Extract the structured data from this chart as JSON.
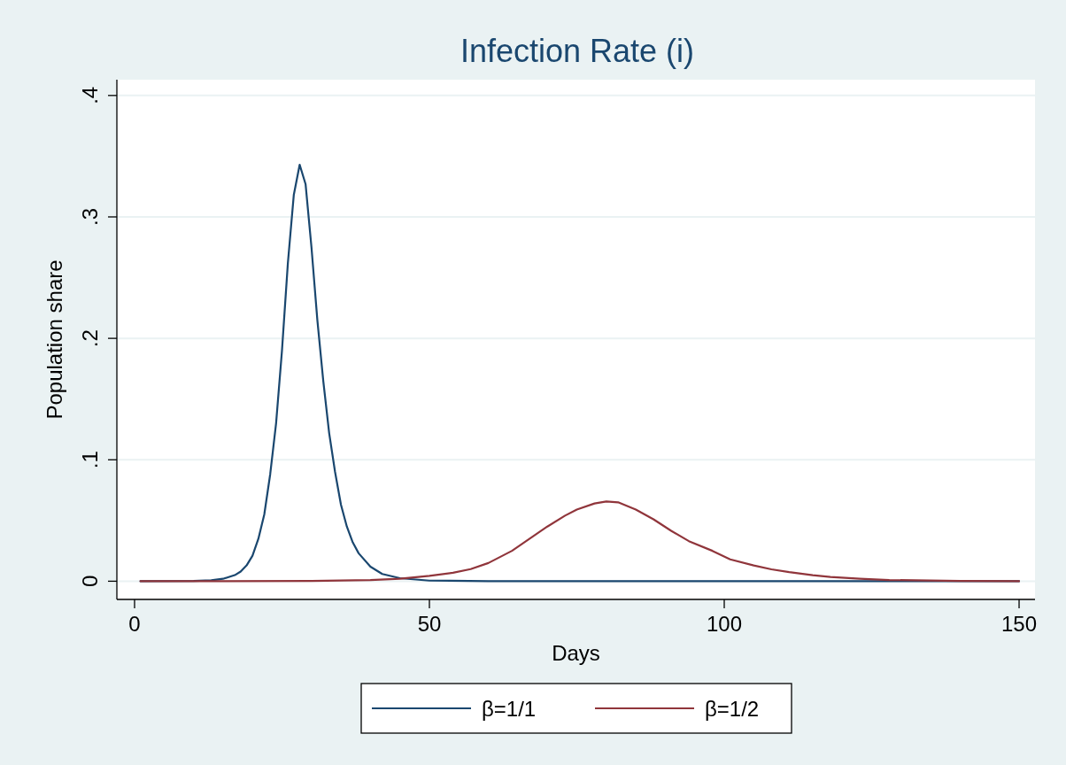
{
  "chart_data": {
    "type": "line",
    "title": "Infection Rate (i)",
    "xlabel": "Days",
    "ylabel": "Population share",
    "xlim": [
      -3,
      152.7
    ],
    "xticks": [
      0,
      50,
      100,
      150
    ],
    "ylim": [
      -0.015,
      0.413
    ],
    "yticks": [
      0,
      {
        "value": 0.1,
        "label": ".1"
      },
      {
        "value": 0.2,
        "label": ".2"
      },
      {
        "value": 0.3,
        "label": ".3"
      },
      {
        "value": 0.4,
        "label": ".4"
      }
    ],
    "grid": "y",
    "legend": "bottom",
    "marker": "none",
    "line_style": "solid",
    "series": [
      {
        "name": "β=1/1",
        "color": "#1a476f",
        "x": [
          1,
          10,
          13,
          15,
          17,
          18,
          19,
          20,
          21,
          22,
          23,
          24,
          25,
          26,
          27,
          28,
          29,
          30,
          31,
          32,
          33,
          34,
          35,
          36,
          37,
          38,
          40,
          42,
          45,
          50,
          60,
          150
        ],
        "values": [
          0,
          0.0002,
          0.0008,
          0.002,
          0.005,
          0.008,
          0.013,
          0.021,
          0.035,
          0.055,
          0.088,
          0.13,
          0.19,
          0.262,
          0.318,
          0.343,
          0.327,
          0.275,
          0.215,
          0.165,
          0.122,
          0.09,
          0.063,
          0.045,
          0.032,
          0.023,
          0.012,
          0.006,
          0.0025,
          0.0005,
          0.0001,
          0
        ]
      },
      {
        "name": "β=1/2",
        "color": "#90353b",
        "x": [
          1,
          30,
          40,
          45,
          50,
          54,
          57,
          60,
          64,
          67,
          70,
          73,
          75,
          78,
          80,
          82,
          85,
          88,
          91,
          94,
          98,
          101,
          105,
          108,
          111,
          115,
          118,
          123,
          128,
          140,
          150
        ],
        "values": [
          0,
          0.0002,
          0.001,
          0.002,
          0.0044,
          0.007,
          0.01,
          0.015,
          0.025,
          0.035,
          0.045,
          0.054,
          0.059,
          0.064,
          0.0657,
          0.065,
          0.059,
          0.051,
          0.0415,
          0.033,
          0.025,
          0.018,
          0.013,
          0.0098,
          0.0075,
          0.005,
          0.0035,
          0.002,
          0.001,
          0.0002,
          0
        ]
      }
    ]
  }
}
